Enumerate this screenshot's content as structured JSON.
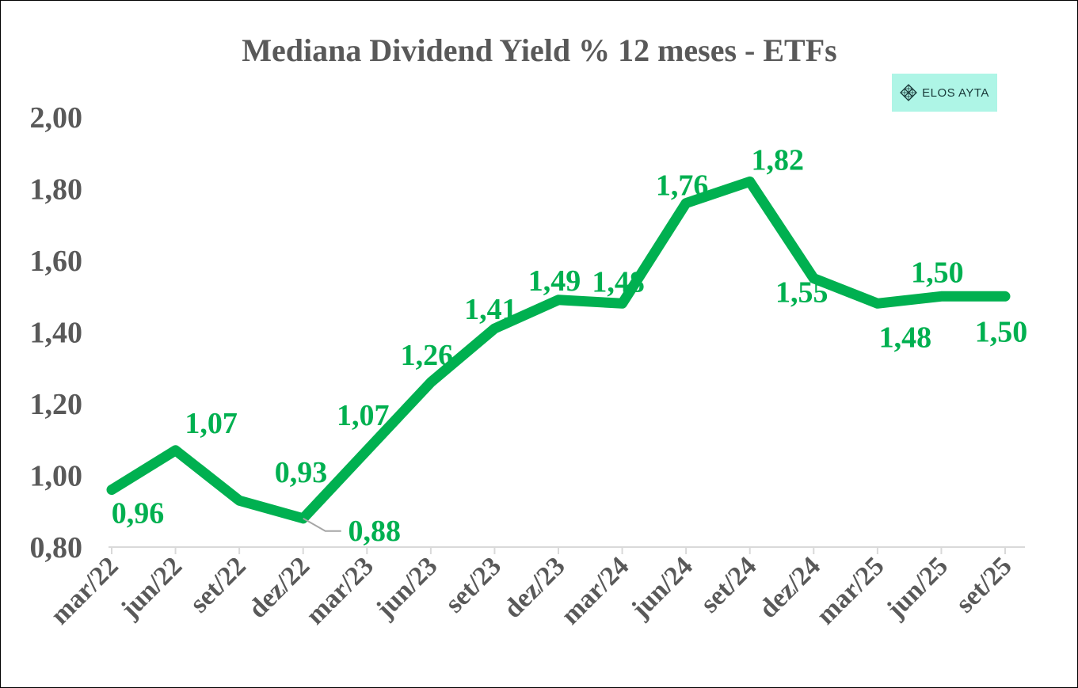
{
  "chart_data": {
    "type": "line",
    "title": "Mediana Dividend Yield % 12 meses - ETFs",
    "categories": [
      "mar/22",
      "jun/22",
      "set/22",
      "dez/22",
      "mar/23",
      "jun/23",
      "set/23",
      "dez/23",
      "mar/24",
      "jun/24",
      "set/24",
      "dez/24",
      "mar/25",
      "jun/25",
      "set/25"
    ],
    "series": [
      {
        "values": [
          0.96,
          1.07,
          0.93,
          0.88,
          1.07,
          1.26,
          1.41,
          1.49,
          1.48,
          1.76,
          1.82,
          1.55,
          1.48,
          1.5,
          1.5
        ]
      }
    ],
    "data_labels": [
      "0,96",
      "1,07",
      "0,93",
      "0,88",
      "1,07",
      "1,26",
      "1,41",
      "1,49",
      "1,48",
      "1,76",
      "1,82",
      "1,55",
      "1,48",
      "1,50",
      "1,50"
    ],
    "yticks": [
      "0,80",
      "1,00",
      "1,20",
      "1,40",
      "1,60",
      "1,80",
      "2,00"
    ],
    "ytick_values": [
      0.8,
      1.0,
      1.2,
      1.4,
      1.6,
      1.8,
      2.0
    ],
    "ylim": [
      0.8,
      2.0
    ],
    "xlabel": "",
    "ylabel": "",
    "grid": false,
    "legend": "none"
  },
  "colors": {
    "line": "#00b050",
    "labels": "#00b050",
    "axis_text": "#595959",
    "axis_line": "#d9d9d9",
    "logo_bg": "#aef5e6"
  },
  "logo": {
    "text": "ELOS AYTA",
    "icon": "diamond-grid-icon"
  }
}
